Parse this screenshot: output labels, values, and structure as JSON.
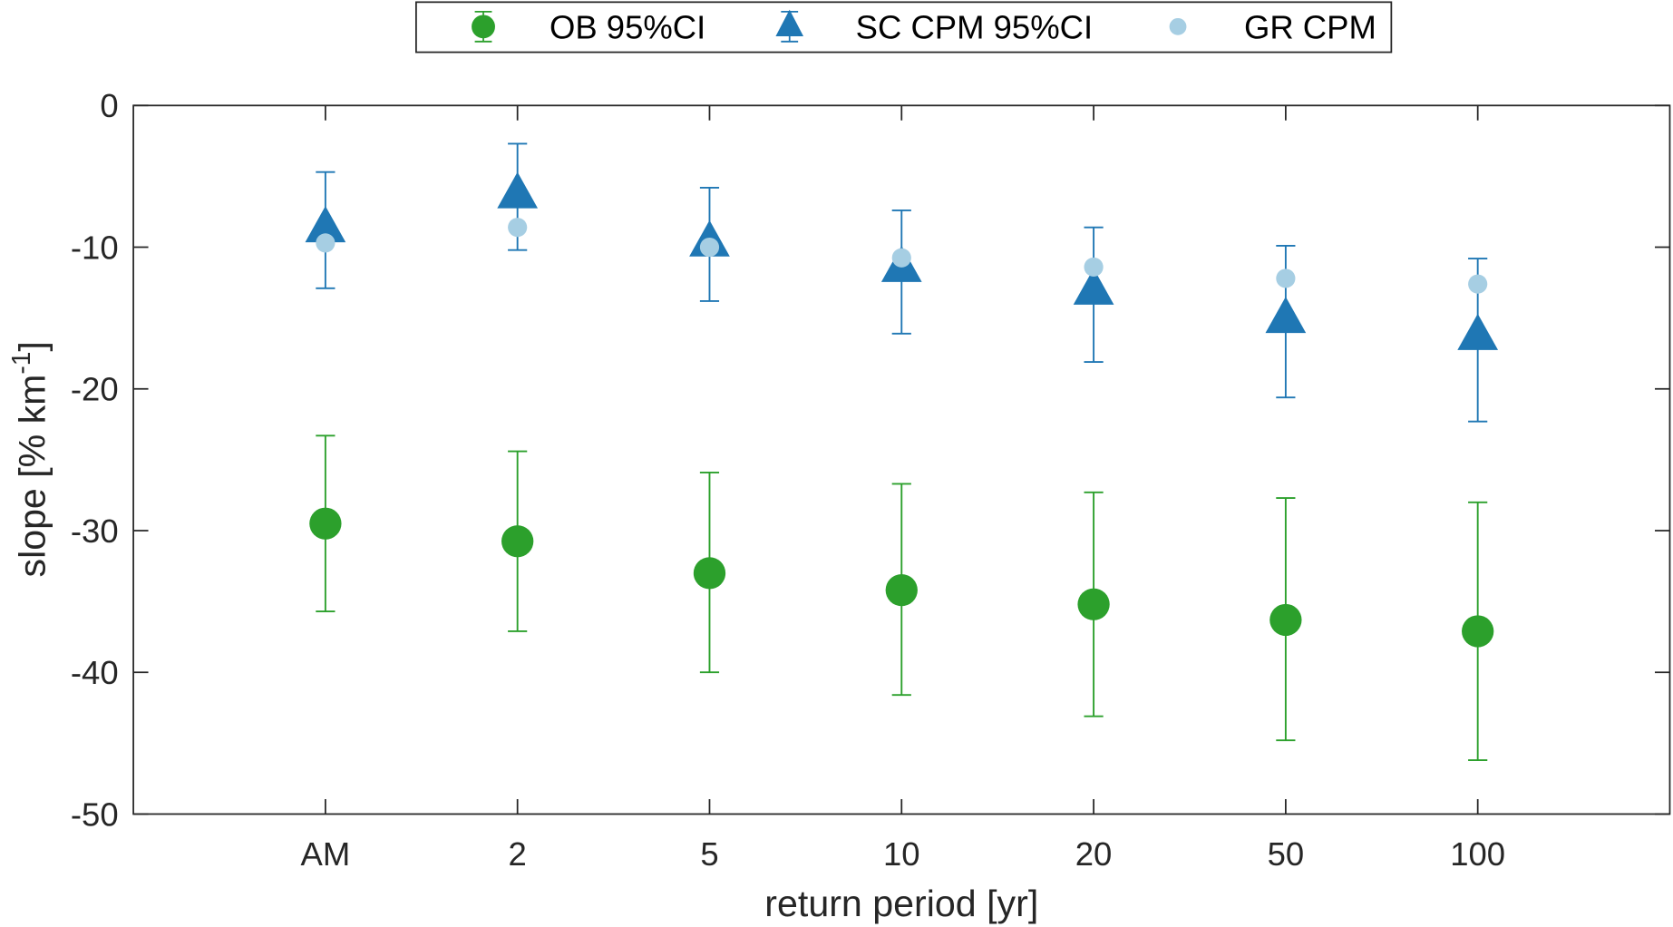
{
  "chart_data": {
    "type": "scatter",
    "title": "",
    "xlabel": "return period [yr]",
    "ylabel_main": "slope [% km",
    "ylabel_sup": "-1",
    "ylabel_end": "]",
    "categories": [
      "AM",
      "2",
      "5",
      "10",
      "20",
      "50",
      "100"
    ],
    "xlim": [
      0,
      8
    ],
    "ylim": [
      -50,
      0
    ],
    "yticks": [
      0,
      -10,
      -20,
      -30,
      -40,
      -50
    ],
    "ytick_labels": [
      "0",
      "-10",
      "-20",
      "-30",
      "-40",
      "-50"
    ],
    "grid": false,
    "legend_placement": "top-outside",
    "series": [
      {
        "name": "OB 95%CI",
        "marker": "circle",
        "color": "#2ca02c",
        "values": [
          -29.5,
          -30.75,
          -33.0,
          -34.2,
          -35.2,
          -36.3,
          -37.1
        ],
        "upper": [
          -23.3,
          -24.4,
          -25.9,
          -26.7,
          -27.3,
          -27.7,
          -28.0
        ],
        "lower": [
          -35.7,
          -37.1,
          -40.0,
          -41.6,
          -43.1,
          -44.8,
          -46.2
        ]
      },
      {
        "name": "SC CPM 95%CI",
        "marker": "triangle",
        "color": "#1f77b4",
        "values": [
          -8.6,
          -6.2,
          -9.6,
          -11.4,
          -13.0,
          -15.0,
          -16.2
        ],
        "upper": [
          -4.7,
          -2.7,
          -5.8,
          -7.4,
          -8.6,
          -9.9,
          -10.8
        ],
        "lower": [
          -12.9,
          -10.2,
          -13.8,
          -16.1,
          -18.1,
          -20.6,
          -22.3
        ]
      },
      {
        "name": "GR CPM",
        "marker": "circle-small",
        "color": "#a6cee3",
        "values": [
          -9.7,
          -8.6,
          -10.0,
          -10.75,
          -11.4,
          -12.2,
          -12.6
        ]
      }
    ]
  }
}
